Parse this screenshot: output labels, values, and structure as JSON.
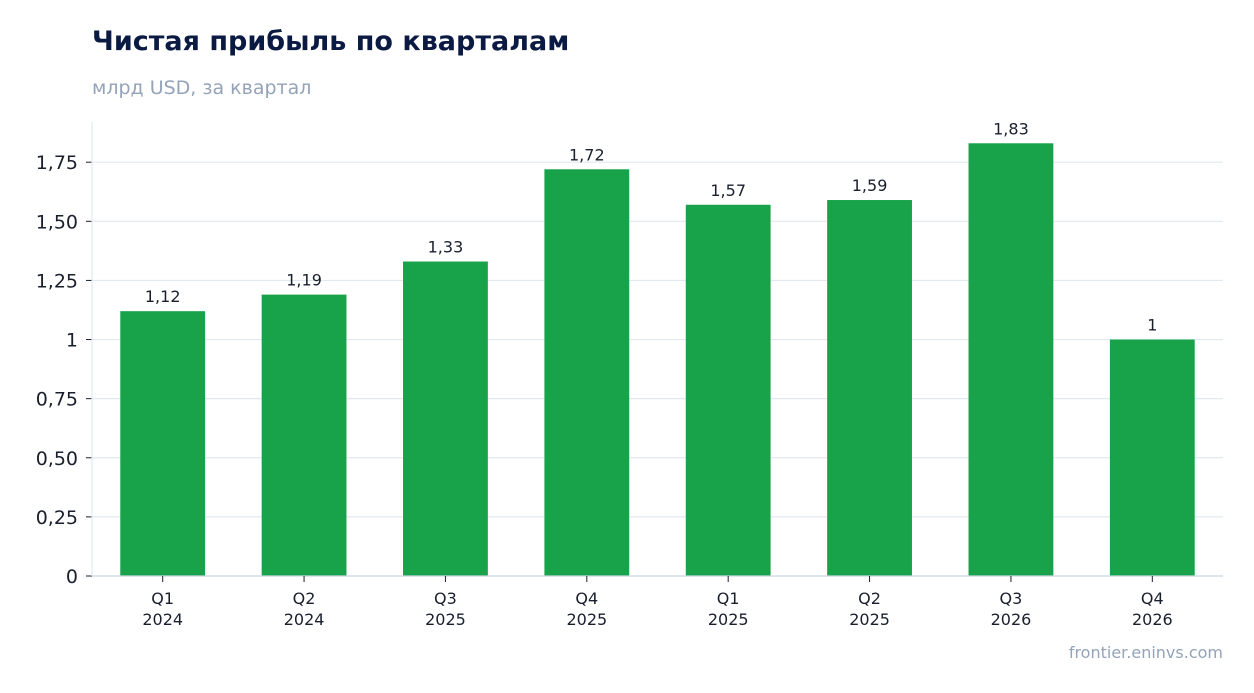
{
  "chart_data": {
    "type": "bar",
    "title": "Чистая прибыль по кварталам",
    "subtitle": "млрд USD, за квартал",
    "categories": [
      [
        "Q1",
        "2024"
      ],
      [
        "Q2",
        "2024"
      ],
      [
        "Q3",
        "2025"
      ],
      [
        "Q4",
        "2025"
      ],
      [
        "Q1",
        "2025"
      ],
      [
        "Q2",
        "2025"
      ],
      [
        "Q3",
        "2026"
      ],
      [
        "Q4",
        "2026"
      ]
    ],
    "values": [
      1.12,
      1.19,
      1.33,
      1.72,
      1.57,
      1.59,
      1.83,
      1.0
    ],
    "value_labels": [
      "1,12",
      "1,19",
      "1,33",
      "1,72",
      "1,57",
      "1,59",
      "1,83",
      "1"
    ],
    "y_ticks": [
      0,
      0.25,
      0.5,
      0.75,
      1,
      1.25,
      1.5,
      1.75
    ],
    "y_tick_labels": [
      "0",
      "0,25",
      "0,50",
      "0,75",
      "1",
      "1,25",
      "1,50",
      "1,75"
    ],
    "ylim": [
      0,
      1.92
    ],
    "grid": true,
    "bar_color": "#18a34a",
    "grid_color": "#e2e8f0",
    "xlabel": "",
    "ylabel": ""
  },
  "footer": {
    "watermark": "frontier.eninvs.com"
  }
}
